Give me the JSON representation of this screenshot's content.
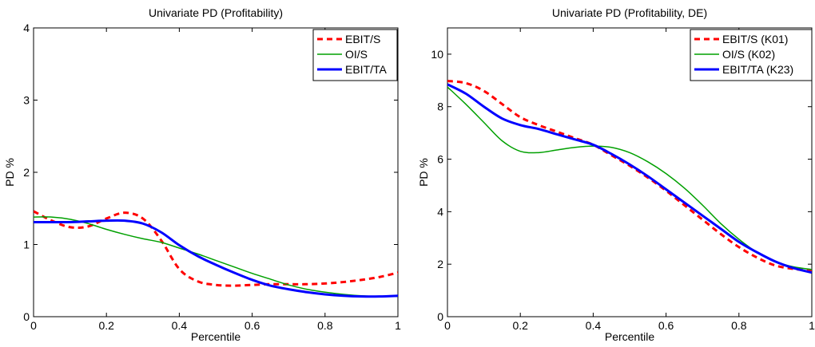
{
  "chart_data": [
    {
      "type": "line",
      "title": "Univariate PD (Profitability)",
      "xlabel": "Percentile",
      "ylabel": "PD %",
      "xlim": [
        0,
        1
      ],
      "ylim": [
        0,
        4
      ],
      "xticks": [
        0,
        0.2,
        0.4,
        0.6,
        0.8,
        1
      ],
      "xtick_labels": [
        "0",
        "0.2",
        "0.4",
        "0.6",
        "0.8",
        "1"
      ],
      "yticks": [
        0,
        1,
        2,
        3,
        4
      ],
      "ytick_labels": [
        "0",
        "1",
        "2",
        "3",
        "4"
      ],
      "grid": false,
      "legend_position": "top-right",
      "series": [
        {
          "name": "EBIT/S",
          "color": "#ff0000",
          "style": "dashed",
          "x": [
            0,
            0.05,
            0.1,
            0.15,
            0.2,
            0.25,
            0.3,
            0.35,
            0.4,
            0.45,
            0.5,
            0.55,
            0.6,
            0.65,
            0.7,
            0.75,
            0.8,
            0.85,
            0.9,
            0.95,
            1.0
          ],
          "y": [
            1.46,
            1.33,
            1.24,
            1.25,
            1.36,
            1.44,
            1.36,
            1.06,
            0.66,
            0.49,
            0.44,
            0.43,
            0.44,
            0.45,
            0.45,
            0.45,
            0.46,
            0.48,
            0.51,
            0.55,
            0.61
          ]
        },
        {
          "name": "OI/S",
          "color": "#00a000",
          "style": "solid",
          "x": [
            0,
            0.05,
            0.1,
            0.15,
            0.2,
            0.25,
            0.3,
            0.35,
            0.4,
            0.45,
            0.5,
            0.55,
            0.6,
            0.65,
            0.7,
            0.75,
            0.8,
            0.85,
            0.9,
            0.95,
            1.0
          ],
          "y": [
            1.38,
            1.38,
            1.35,
            1.29,
            1.21,
            1.14,
            1.08,
            1.03,
            0.95,
            0.87,
            0.78,
            0.69,
            0.6,
            0.52,
            0.44,
            0.38,
            0.34,
            0.31,
            0.29,
            0.28,
            0.28
          ]
        },
        {
          "name": "EBIT/TA",
          "color": "#0000ff",
          "style": "solid-thick",
          "x": [
            0,
            0.05,
            0.1,
            0.15,
            0.2,
            0.25,
            0.3,
            0.35,
            0.4,
            0.45,
            0.5,
            0.55,
            0.6,
            0.65,
            0.7,
            0.75,
            0.8,
            0.85,
            0.9,
            0.95,
            1.0
          ],
          "y": [
            1.31,
            1.31,
            1.31,
            1.32,
            1.33,
            1.33,
            1.29,
            1.17,
            0.99,
            0.84,
            0.72,
            0.61,
            0.51,
            0.43,
            0.38,
            0.34,
            0.31,
            0.29,
            0.28,
            0.28,
            0.29
          ]
        }
      ]
    },
    {
      "type": "line",
      "title": "Univariate PD (Profitability, DE)",
      "xlabel": "Percentile",
      "ylabel": "PD %",
      "xlim": [
        0,
        1
      ],
      "ylim": [
        0,
        11
      ],
      "xticks": [
        0,
        0.2,
        0.4,
        0.6,
        0.8,
        1
      ],
      "xtick_labels": [
        "0",
        "0.2",
        "0.4",
        "0.6",
        "0.8",
        "1"
      ],
      "yticks": [
        0,
        2,
        4,
        6,
        8,
        10
      ],
      "ytick_labels": [
        "0",
        "2",
        "4",
        "6",
        "8",
        "10"
      ],
      "grid": false,
      "legend_position": "top-right",
      "series": [
        {
          "name": "EBIT/S (K01)",
          "color": "#ff0000",
          "style": "dashed",
          "x": [
            0,
            0.05,
            0.1,
            0.15,
            0.2,
            0.25,
            0.3,
            0.35,
            0.4,
            0.45,
            0.5,
            0.55,
            0.6,
            0.65,
            0.7,
            0.75,
            0.8,
            0.85,
            0.9,
            0.95,
            1.0
          ],
          "y": [
            8.98,
            8.9,
            8.6,
            8.1,
            7.6,
            7.3,
            7.05,
            6.8,
            6.55,
            6.15,
            5.75,
            5.3,
            4.8,
            4.25,
            3.7,
            3.15,
            2.65,
            2.25,
            1.95,
            1.82,
            1.75
          ]
        },
        {
          "name": "OI/S (K02)",
          "color": "#00a000",
          "style": "solid",
          "x": [
            0,
            0.05,
            0.1,
            0.15,
            0.2,
            0.25,
            0.3,
            0.35,
            0.4,
            0.45,
            0.5,
            0.55,
            0.6,
            0.65,
            0.7,
            0.75,
            0.8,
            0.85,
            0.9,
            0.95,
            1.0
          ],
          "y": [
            8.75,
            8.1,
            7.4,
            6.7,
            6.3,
            6.25,
            6.35,
            6.45,
            6.5,
            6.45,
            6.25,
            5.9,
            5.45,
            4.9,
            4.25,
            3.55,
            2.95,
            2.45,
            2.1,
            1.9,
            1.8
          ]
        },
        {
          "name": "EBIT/TA (K23)",
          "color": "#0000ff",
          "style": "solid-thick",
          "x": [
            0,
            0.05,
            0.1,
            0.15,
            0.2,
            0.25,
            0.3,
            0.35,
            0.4,
            0.45,
            0.5,
            0.55,
            0.6,
            0.65,
            0.7,
            0.75,
            0.8,
            0.85,
            0.9,
            0.95,
            1.0
          ],
          "y": [
            8.85,
            8.5,
            8.0,
            7.55,
            7.3,
            7.15,
            6.95,
            6.75,
            6.55,
            6.2,
            5.8,
            5.35,
            4.85,
            4.35,
            3.85,
            3.35,
            2.85,
            2.45,
            2.1,
            1.85,
            1.68
          ]
        }
      ]
    }
  ]
}
